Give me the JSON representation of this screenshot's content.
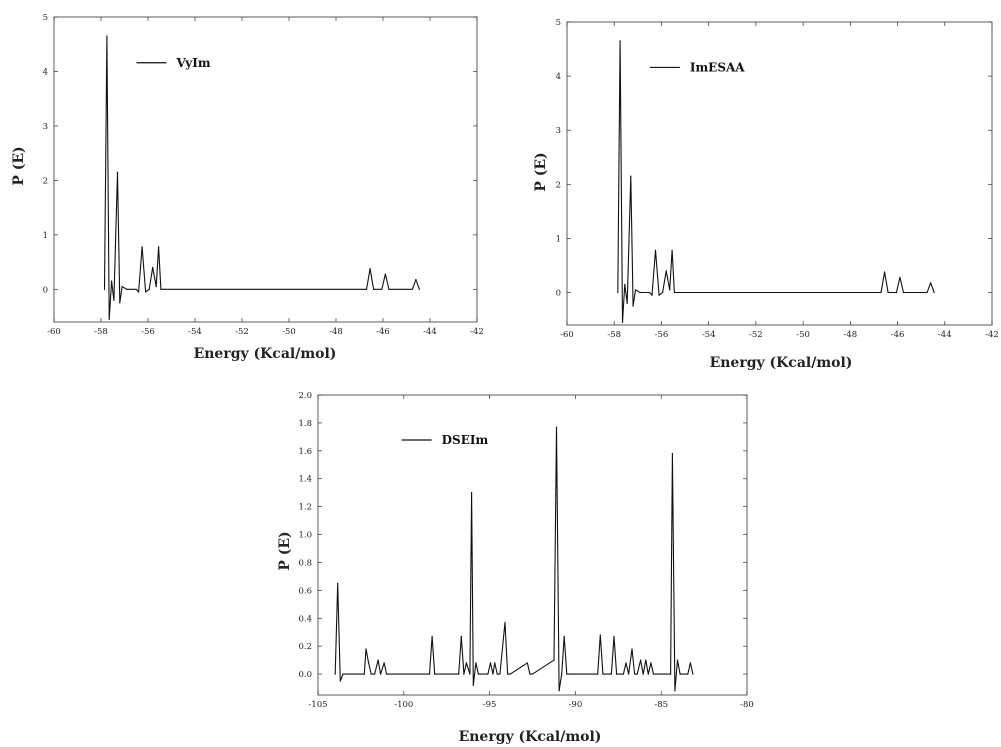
{
  "chart_data": [
    {
      "type": "line",
      "legend": "VyIm",
      "legend_position": "top-left",
      "xlabel": "Energy (Kcal/mol)",
      "ylabel": "P (E)",
      "xlim": [
        -60,
        -42
      ],
      "ylim": [
        -0.6,
        5
      ],
      "xticks": [
        -60,
        -58,
        -56,
        -54,
        -52,
        -50,
        -48,
        -46,
        -44,
        -42
      ],
      "yticks": [
        0,
        1,
        2,
        3,
        4,
        5
      ],
      "grid": false,
      "series": [
        {
          "name": "VyIm",
          "x": [
            -57.85,
            -57.75,
            -57.65,
            -57.55,
            -57.45,
            -57.3,
            -57.2,
            -57.1,
            -56.9,
            -56.5,
            -56.4,
            -56.25,
            -56.1,
            -55.95,
            -55.8,
            -55.65,
            -55.55,
            -55.45,
            -55.3,
            -46.7,
            -46.55,
            -46.4,
            -46.05,
            -45.9,
            -45.75,
            -44.75,
            -44.6,
            -44.45
          ],
          "y": [
            0,
            4.65,
            -0.55,
            0.15,
            -0.2,
            2.15,
            -0.25,
            0.05,
            0,
            0,
            -0.05,
            0.78,
            -0.05,
            0,
            0.4,
            0.05,
            0.78,
            0,
            0,
            0,
            0.38,
            0,
            0,
            0.28,
            0,
            0,
            0.18,
            0
          ]
        }
      ]
    },
    {
      "type": "line",
      "legend": "ImESAA",
      "legend_position": "top-left",
      "xlabel": "Energy (Kcal/mol)",
      "ylabel": "P (E)",
      "xlim": [
        -60,
        -42
      ],
      "ylim": [
        -0.6,
        5
      ],
      "xticks": [
        -60,
        -58,
        -56,
        -54,
        -52,
        -50,
        -48,
        -46,
        -44,
        -42
      ],
      "yticks": [
        0,
        1,
        2,
        3,
        4,
        5
      ],
      "grid": false,
      "series": [
        {
          "name": "ImESAA",
          "x": [
            -57.85,
            -57.75,
            -57.65,
            -57.55,
            -57.45,
            -57.3,
            -57.2,
            -57.1,
            -56.9,
            -56.5,
            -56.4,
            -56.25,
            -56.1,
            -55.95,
            -55.8,
            -55.65,
            -55.55,
            -55.45,
            -55.3,
            -46.7,
            -46.55,
            -46.4,
            -46.05,
            -45.9,
            -45.75,
            -44.75,
            -44.6,
            -44.45
          ],
          "y": [
            0,
            4.65,
            -0.55,
            0.15,
            -0.2,
            2.15,
            -0.25,
            0.05,
            0,
            0,
            -0.05,
            0.78,
            -0.05,
            0,
            0.4,
            0.05,
            0.78,
            0,
            0,
            0,
            0.38,
            0,
            0,
            0.28,
            0,
            0,
            0.18,
            0
          ]
        }
      ]
    },
    {
      "type": "line",
      "legend": "DSEIm",
      "legend_position": "top-left",
      "xlabel": "Energy (Kcal/mol)",
      "ylabel": "P (E)",
      "xlim": [
        -105,
        -80
      ],
      "ylim": [
        -0.15,
        2.0
      ],
      "xticks": [
        -105,
        -100,
        -95,
        -90,
        -85,
        -80
      ],
      "yticks": [
        0.0,
        0.2,
        0.4,
        0.6,
        0.8,
        1.0,
        1.2,
        1.4,
        1.6,
        1.8,
        2.0
      ],
      "grid": false,
      "series": [
        {
          "name": "DSEIm",
          "x": [
            -104.0,
            -103.85,
            -103.7,
            -103.55,
            -102.3,
            -102.2,
            -102.05,
            -101.9,
            -101.7,
            -101.5,
            -101.35,
            -101.15,
            -101.0,
            -100.85,
            -98.5,
            -98.35,
            -98.2,
            -96.8,
            -96.65,
            -96.5,
            -96.35,
            -96.15,
            -96.05,
            -95.95,
            -95.8,
            -95.65,
            -95.1,
            -94.95,
            -94.8,
            -94.7,
            -94.55,
            -94.4,
            -94.1,
            -93.95,
            -93.8,
            -92.8,
            -92.65,
            -92.5,
            -91.25,
            -91.1,
            -90.95,
            -90.8,
            -90.65,
            -90.5,
            -90.35,
            -88.7,
            -88.55,
            -88.4,
            -87.9,
            -87.75,
            -87.6,
            -87.2,
            -87.05,
            -86.9,
            -86.7,
            -86.55,
            -86.4,
            -86.2,
            -86.05,
            -85.9,
            -85.75,
            -85.6,
            -85.45,
            -85.3,
            -84.45,
            -84.35,
            -84.2,
            -84.05,
            -83.9,
            -83.45,
            -83.3,
            -83.15
          ],
          "y": [
            0,
            0.65,
            -0.05,
            0,
            0,
            0.18,
            0.08,
            0,
            0,
            0.1,
            0,
            0.08,
            0,
            0,
            0,
            0.27,
            0,
            0,
            0.27,
            0,
            0.08,
            0,
            1.3,
            -0.08,
            0.08,
            0,
            0,
            0.08,
            0,
            0.08,
            0,
            0,
            0.37,
            0,
            0,
            0.08,
            0,
            0,
            0.1,
            1.77,
            -0.12,
            0,
            0.27,
            0,
            0,
            0,
            0.28,
            0,
            0,
            0.27,
            0,
            0,
            0.08,
            0,
            0.18,
            0,
            0,
            0.1,
            0,
            0.1,
            0,
            0.08,
            0,
            0,
            0,
            1.58,
            -0.12,
            0.1,
            0,
            0,
            0.08,
            0
          ]
        }
      ]
    }
  ]
}
